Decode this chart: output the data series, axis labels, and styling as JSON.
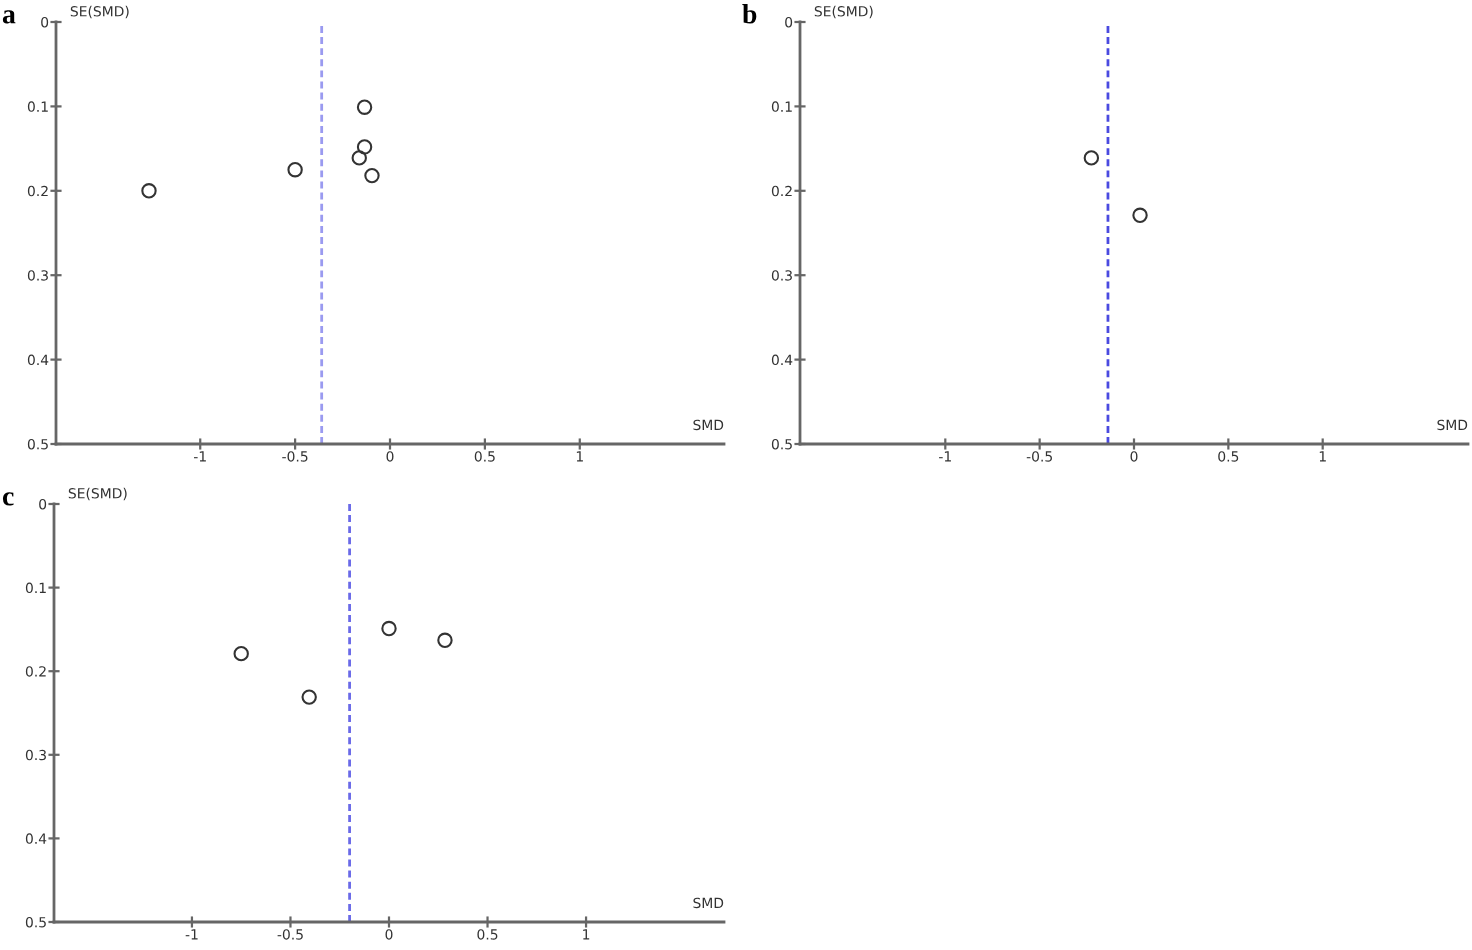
{
  "chart_data": [
    {
      "type": "scatter",
      "title": "a",
      "xlabel": "SMD",
      "ylabel": "SE(SMD)",
      "x": [
        -1.27,
        -0.5,
        -0.134,
        -0.134,
        -0.162,
        -0.095
      ],
      "values": [
        0.2,
        0.175,
        0.101,
        0.148,
        0.161,
        0.182
      ],
      "color": "#333333",
      "marker": "circle",
      "xlim": [
        -1.76,
        1.76
      ],
      "xticks": [
        -1,
        -0.5,
        0,
        0.5,
        1
      ],
      "ylim": [
        0.5,
        0
      ],
      "yticks": [
        0,
        0.1,
        0.2,
        0.3,
        0.4,
        0.5
      ],
      "ref_lines": [
        {
          "axis": "x",
          "value": -0.36,
          "color": "#9a9af0",
          "line_style": "dashed"
        }
      ]
    },
    {
      "type": "scatter",
      "title": "b",
      "xlabel": "SMD",
      "ylabel": "SE(SMD)",
      "x": [
        -0.226,
        0.032
      ],
      "values": [
        0.161,
        0.229
      ],
      "color": "#333333",
      "marker": "circle",
      "xlim": [
        -1.77,
        1.77
      ],
      "xticks": [
        -1,
        -0.5,
        0,
        0.5,
        1
      ],
      "ylim": [
        0.5,
        0
      ],
      "yticks": [
        0,
        0.1,
        0.2,
        0.3,
        0.4,
        0.5
      ],
      "ref_lines": [
        {
          "axis": "x",
          "value": -0.138,
          "color": "#4a4ae0",
          "line_style": "dashed"
        }
      ]
    },
    {
      "type": "scatter",
      "title": "c",
      "xlabel": "SMD",
      "ylabel": "SE(SMD)",
      "x": [
        -0.75,
        -0.405,
        0.0,
        0.284
      ],
      "values": [
        0.179,
        0.231,
        0.149,
        0.163
      ],
      "color": "#333333",
      "marker": "circle",
      "xlim": [
        -1.7,
        1.7
      ],
      "xticks": [
        -1,
        -0.5,
        0,
        0.5,
        1
      ],
      "ylim": [
        0.5,
        0
      ],
      "yticks": [
        0,
        0.1,
        0.2,
        0.3,
        0.4,
        0.5
      ],
      "ref_lines": [
        {
          "axis": "x",
          "value": -0.2,
          "color": "#6a6ae8",
          "line_style": "dashed"
        }
      ]
    }
  ]
}
